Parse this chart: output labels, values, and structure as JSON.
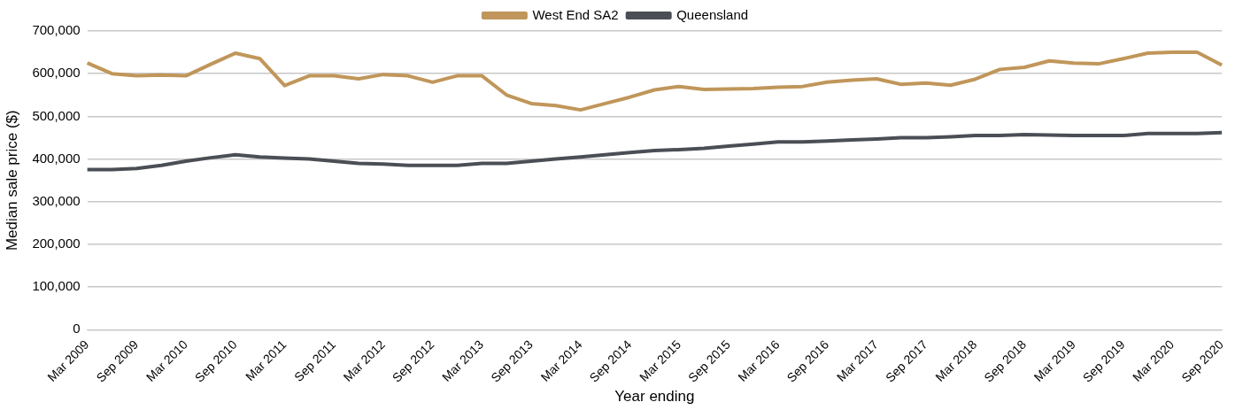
{
  "chart_data": {
    "type": "line",
    "xlabel": "Year ending",
    "ylabel": "Median sale price ($)",
    "categories": [
      "Mar 2009",
      null,
      "Sep 2009",
      null,
      "Mar 2010",
      null,
      "Sep 2010",
      null,
      "Mar 2011",
      null,
      "Sep 2011",
      null,
      "Mar 2012",
      null,
      "Sep 2012",
      null,
      "Mar 2013",
      null,
      "Sep 2013",
      null,
      "Mar 2014",
      null,
      "Sep 2014",
      null,
      "Mar 2015",
      null,
      "Sep 2015",
      null,
      "Mar 2016",
      null,
      "Sep 2016",
      null,
      "Mar 2017",
      null,
      "Sep 2017",
      null,
      "Mar 2018",
      null,
      "Sep 2018",
      null,
      "Mar 2019",
      null,
      "Sep 2019",
      null,
      "Mar 2020",
      null,
      "Sep 2020"
    ],
    "series": [
      {
        "name": "West End SA2",
        "color": "#c0965a",
        "values": [
          625000,
          600000,
          595000,
          597000,
          595000,
          622000,
          648000,
          635000,
          572000,
          595000,
          595000,
          588000,
          598000,
          595000,
          580000,
          595000,
          595000,
          550000,
          530000,
          525000,
          515000,
          530000,
          545000,
          562000,
          570000,
          563000,
          564000,
          565000,
          568000,
          570000,
          580000,
          585000,
          588000,
          575000,
          578000,
          573000,
          587000,
          610000,
          615000,
          630000,
          625000,
          623000,
          635000,
          648000,
          650000,
          650000,
          620000
        ]
      },
      {
        "name": "Queensland",
        "color": "#4a4f55",
        "values": [
          375000,
          375000,
          378000,
          385000,
          395000,
          403000,
          410000,
          405000,
          402000,
          400000,
          395000,
          390000,
          388000,
          385000,
          385000,
          385000,
          390000,
          390000,
          395000,
          400000,
          405000,
          410000,
          415000,
          420000,
          422000,
          425000,
          430000,
          435000,
          440000,
          440000,
          442000,
          445000,
          447000,
          450000,
          450000,
          452000,
          455000,
          455000,
          457000,
          456000,
          455000,
          455000,
          455000,
          460000,
          460000,
          460000,
          462000
        ]
      }
    ],
    "ylim": [
      0,
      700000
    ],
    "yticks": [
      0,
      {
        "value": 100000,
        "label": "100,000"
      },
      {
        "value": 200000,
        "label": "200,000"
      },
      {
        "value": 300000,
        "label": "300,000"
      },
      {
        "value": 400000,
        "label": "400,000"
      },
      {
        "value": 500000,
        "label": "500,000"
      },
      {
        "value": 600000,
        "label": "600,000"
      },
      {
        "value": 700000,
        "label": "700,000"
      }
    ],
    "grid": "y",
    "legend": "top",
    "marker": "none",
    "line_style": "solid"
  }
}
